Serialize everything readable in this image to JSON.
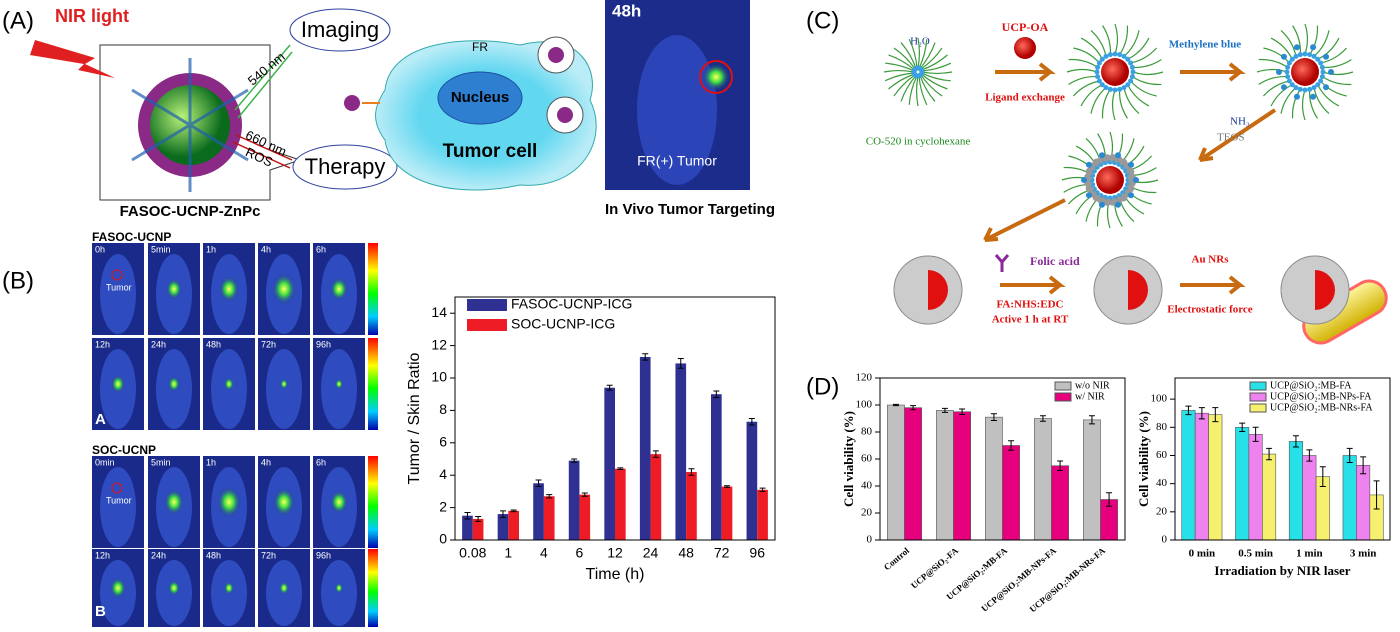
{
  "panel_labels": [
    "(A)",
    "(B)",
    "(C)",
    "(D)"
  ],
  "panel_a": {
    "nir": "NIR light",
    "wl1": "540 nm",
    "imaging": "Imaging",
    "wl2": "660 nm",
    "ros": "ROS",
    "therapy": "Therapy",
    "caption": "FASOC-UCNP-ZnPc",
    "fr": "FR",
    "nucleus": "Nucleus",
    "cell": "Tumor cell",
    "time": "48h",
    "tumor": "FR(+) Tumor",
    "caption2": "In Vivo Tumor Targeting"
  },
  "panel_b": {
    "group1": "FASOC-UCNP",
    "times1": [
      "0h",
      "5min",
      "1h",
      "4h",
      "6h"
    ],
    "times2": [
      "12h",
      "24h",
      "48h",
      "72h",
      "96h"
    ],
    "tumor": "Tumor",
    "tag1": "A",
    "group2": "SOC-UCNP",
    "times3": [
      "0min",
      "5min",
      "1h",
      "4h",
      "6h"
    ],
    "times4": [
      "12h",
      "24h",
      "48h",
      "72h",
      "96h"
    ],
    "tag2": "B"
  },
  "panel_c": {
    "water": "H₂O",
    "solvent": "CO-520 in cyclohexane",
    "ucp": "UCP-OA",
    "exchange": "Ligand exchange",
    "mb": "Methylene blue",
    "nh3": "NH₃",
    "teos": "TEOS",
    "fa": "Folic acid",
    "reagents": "FA:NHS:EDC",
    "active": "Active 1 h at RT",
    "au": "Au NRs",
    "force": "Electrostatic force"
  },
  "chart_data": [
    {
      "type": "bar",
      "xlabel": "Time (h)",
      "ylabel": "Tumor / Skin Ratio",
      "categories": [
        "0.08",
        "1",
        "4",
        "6",
        "12",
        "24",
        "48",
        "72",
        "96"
      ],
      "series": [
        {
          "name": "FASOC-UCNP-ICG",
          "color": "#2e3192",
          "values": [
            1.5,
            1.6,
            3.5,
            4.9,
            9.4,
            11.3,
            10.9,
            9.0,
            7.3
          ],
          "errors": [
            0.2,
            0.2,
            0.2,
            0.1,
            0.15,
            0.2,
            0.3,
            0.2,
            0.2
          ]
        },
        {
          "name": "SOC-UCNP-ICG",
          "color": "#ee1c25",
          "values": [
            1.3,
            1.8,
            2.7,
            2.8,
            4.4,
            5.3,
            4.2,
            3.3,
            3.1
          ],
          "errors": [
            0.15,
            0.05,
            0.1,
            0.1,
            0.05,
            0.2,
            0.2,
            0.05,
            0.1
          ]
        }
      ],
      "ylim": [
        0,
        15
      ],
      "yticks": [
        0,
        2,
        4,
        6,
        8,
        10,
        12,
        14
      ],
      "legend": "upper left"
    },
    {
      "type": "bar",
      "ylabel": "Cell viability (%)",
      "categories": [
        "Control",
        "UCP@SiO₂-FA",
        "UCP@SiO₂:MB-FA",
        "UCP@SiO₂:MB-NPs-FA",
        "UCP@SiO₂:MB-NRs-FA"
      ],
      "series": [
        {
          "name": "w/o NIR",
          "color": "#c0c0c0",
          "values": [
            100,
            96,
            91,
            90,
            89
          ],
          "errors": [
            0.5,
            1.5,
            2.5,
            2,
            3
          ]
        },
        {
          "name": "w/   NIR",
          "color": "#e6007e",
          "values": [
            98,
            95,
            70,
            55,
            30
          ],
          "errors": [
            1.5,
            2,
            3.5,
            3.5,
            5
          ]
        }
      ],
      "ylim": [
        0,
        120
      ],
      "yticks": [
        0,
        20,
        40,
        60,
        80,
        100,
        120
      ],
      "legend": "upper right"
    },
    {
      "type": "bar",
      "xlabel": "Irradiation by NIR laser",
      "ylabel": "Cell viability (%)",
      "categories": [
        "0 min",
        "0.5 min",
        "1 min",
        "3 min"
      ],
      "series": [
        {
          "name": "UCP@SiO₂:MB-FA",
          "color": "#27e0e8",
          "values": [
            92,
            80,
            70,
            60
          ],
          "errors": [
            3,
            3,
            4,
            5
          ]
        },
        {
          "name": "UCP@SiO₂:MB-NPs-FA",
          "color": "#ee82ee",
          "values": [
            90,
            75,
            60,
            53
          ],
          "errors": [
            4,
            5,
            4,
            6
          ]
        },
        {
          "name": "UCP@SiO₂:MB-NRs-FA",
          "color": "#f5f06e",
          "values": [
            89,
            61,
            45,
            32
          ],
          "errors": [
            5,
            4,
            7,
            10
          ]
        }
      ],
      "ylim": [
        0,
        115
      ],
      "yticks": [
        0,
        20,
        40,
        60,
        80,
        100
      ],
      "legend": "upper right"
    }
  ]
}
